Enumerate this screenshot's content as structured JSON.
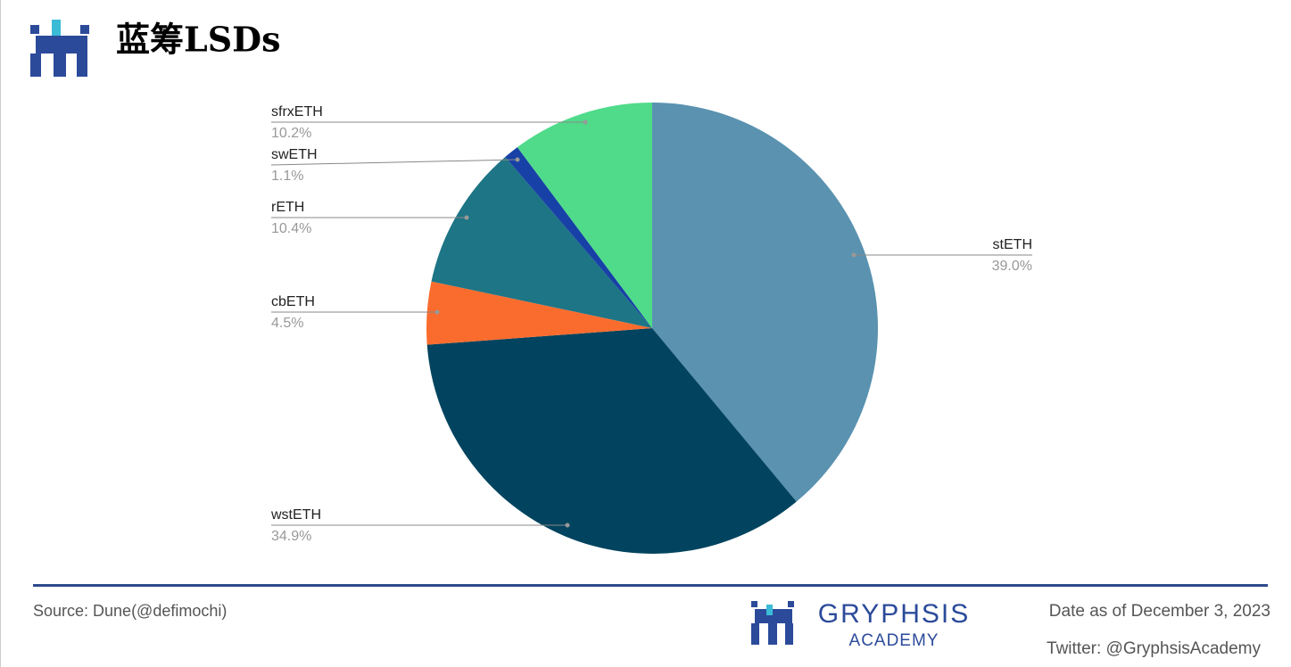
{
  "header": {
    "title": "蓝筹LSDs"
  },
  "chart_data": {
    "type": "pie",
    "categories": [
      "stETH",
      "wstETH",
      "cbETH",
      "rETH",
      "swETH",
      "sfrxETH"
    ],
    "values": [
      39.0,
      34.9,
      4.5,
      10.4,
      1.1,
      10.2
    ],
    "value_labels": [
      "39.0%",
      "34.9%",
      "4.5%",
      "10.4%",
      "1.1%",
      "10.2%"
    ],
    "colors": [
      "#5a92b0",
      "#02445f",
      "#fa6c2e",
      "#1d7585",
      "#1741a6",
      "#4fdb8a"
    ]
  },
  "footer": {
    "source": "Source: Dune(@defimochi)",
    "brand": "GRYPHSIS",
    "brand_sub": "ACADEMY",
    "date": "Date as of December 3, 2023",
    "twitter": "Twitter: @GryphsisAcademy"
  }
}
